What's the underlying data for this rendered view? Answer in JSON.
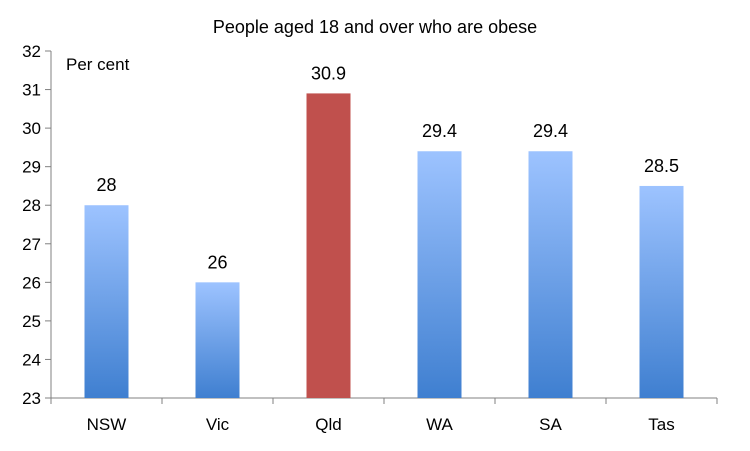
{
  "chart_data": {
    "type": "bar",
    "title": "People aged 18 and over who are obese",
    "ylabel": "Per cent",
    "xlabel": "",
    "categories": [
      "NSW",
      "Vic",
      "Qld",
      "WA",
      "SA",
      "Tas"
    ],
    "values": [
      28,
      26,
      30.9,
      29.4,
      29.4,
      28.5
    ],
    "data_labels": [
      "28",
      "26",
      "30.9",
      "29.4",
      "29.4",
      "28.5"
    ],
    "highlight_category": "Qld",
    "ylim": [
      23,
      32
    ],
    "yticks": [
      "23",
      "24",
      "25",
      "26",
      "27",
      "28",
      "29",
      "30",
      "31",
      "32"
    ],
    "grid": false,
    "legend": "none",
    "colors": {
      "bar_top": "#9dc3ff",
      "bar_bottom": "#3f7fd0",
      "highlight": "#c0504d",
      "axis": "#808080"
    }
  }
}
